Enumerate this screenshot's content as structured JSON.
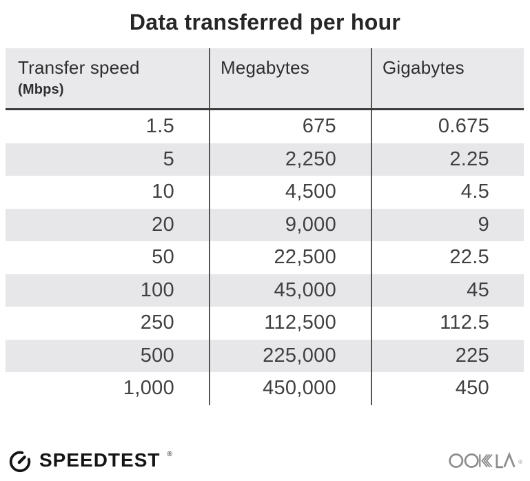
{
  "title": "Data transferred per hour",
  "chart_data": {
    "type": "table",
    "title": "Data transferred per hour",
    "columns": [
      "Transfer speed (Mbps)",
      "Megabytes",
      "Gigabytes"
    ],
    "rows": [
      [
        1.5,
        675,
        0.675
      ],
      [
        5,
        2250,
        2.25
      ],
      [
        10,
        4500,
        4.5
      ],
      [
        20,
        9000,
        9
      ],
      [
        50,
        22500,
        22.5
      ],
      [
        100,
        45000,
        45
      ],
      [
        250,
        112500,
        112.5
      ],
      [
        500,
        225000,
        225
      ],
      [
        1000,
        450000,
        450
      ]
    ]
  },
  "table": {
    "header": {
      "col1_label": "Transfer speed",
      "col1_sublabel": "(Mbps)",
      "col2_label": "Megabytes",
      "col3_label": "Gigabytes"
    },
    "rows": [
      {
        "speed": "1.5",
        "megabytes": "675",
        "gigabytes": "0.675"
      },
      {
        "speed": "5",
        "megabytes": "2,250",
        "gigabytes": "2.25"
      },
      {
        "speed": "10",
        "megabytes": "4,500",
        "gigabytes": "4.5"
      },
      {
        "speed": "20",
        "megabytes": "9,000",
        "gigabytes": "9"
      },
      {
        "speed": "50",
        "megabytes": "22,500",
        "gigabytes": "22.5"
      },
      {
        "speed": "100",
        "megabytes": "45,000",
        "gigabytes": "45"
      },
      {
        "speed": "250",
        "megabytes": "112,500",
        "gigabytes": "112.5"
      },
      {
        "speed": "500",
        "megabytes": "225,000",
        "gigabytes": "225"
      },
      {
        "speed": "1,000",
        "megabytes": "450,000",
        "gigabytes": "450"
      }
    ]
  },
  "footer": {
    "speedtest_label": "SPEEDTEST",
    "speedtest_trademark": "®",
    "ookla_label": "OOKLA",
    "ookla_trademark": "®"
  },
  "colors": {
    "header_bg": "#e9e9ec",
    "stripe_bg": "#e7e7ea",
    "divider": "#545454",
    "header_rule": "#3b3b3b",
    "title_text": "#262626",
    "body_text": "#404040",
    "ookla_gray": "#8d8d8d"
  }
}
